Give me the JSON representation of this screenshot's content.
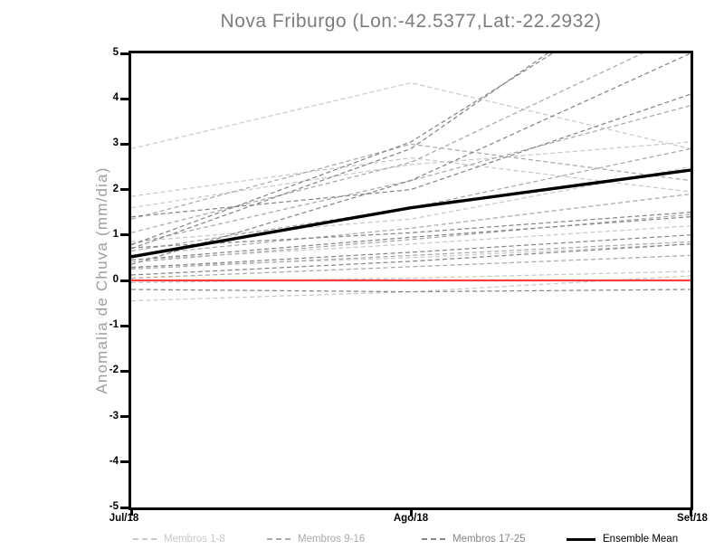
{
  "chart_data": {
    "type": "line",
    "title": "Nova Friburgo (Lon:-42.5377,Lat:-22.2932)",
    "ylabel": "Anomalia de Chuva (mm/dia)",
    "xlabel": "",
    "x_categories": [
      "Jul/18",
      "Ago/18",
      "Set/18"
    ],
    "y_ticks": [
      5,
      4,
      3,
      2,
      1,
      0,
      -1,
      -2,
      -3,
      -4,
      -5
    ],
    "ylim": [
      -5,
      5
    ],
    "grid": false,
    "legend_position": "bottom",
    "zero_line": {
      "value": 0,
      "color": "#f94040"
    },
    "ensemble_mean": {
      "name": "Ensemble Mean",
      "color": "#000000",
      "values": [
        0.52,
        1.6,
        2.43
      ]
    },
    "member_groups": [
      {
        "name": "Membros 1-8",
        "color": "#c9c9c9",
        "members": [
          [
            2.9,
            4.35,
            2.9
          ],
          [
            1.85,
            2.7,
            1.95
          ],
          [
            1.6,
            2.55,
            3.05
          ],
          [
            0.85,
            1.35,
            2.5
          ],
          [
            0.45,
            0.8,
            1.2
          ],
          [
            0.3,
            0.5,
            0.8
          ],
          [
            -0.05,
            0.05,
            0.2
          ],
          [
            -0.45,
            -0.25,
            0.1
          ]
        ]
      },
      {
        "name": "Membros 9-16",
        "color": "#a9a9a9",
        "members": [
          [
            1.35,
            3.0,
            2.2
          ],
          [
            0.8,
            2.2,
            3.85
          ],
          [
            0.65,
            1.6,
            2.9
          ],
          [
            0.55,
            1.15,
            1.9
          ],
          [
            0.4,
            0.9,
            1.45
          ],
          [
            0.25,
            0.55,
            0.85
          ],
          [
            0.05,
            0.3,
            0.55
          ],
          [
            1.05,
            2.6,
            5.5
          ]
        ]
      },
      {
        "name": "Membros 17-25",
        "color": "#868686",
        "members": [
          [
            0.7,
            2.9,
            7.2
          ],
          [
            0.78,
            3.05,
            6.9
          ],
          [
            0.35,
            2.2,
            5.0
          ],
          [
            1.4,
            2.0,
            4.1
          ],
          [
            0.72,
            1.05,
            1.5
          ],
          [
            0.45,
            0.95,
            1.4
          ],
          [
            0.28,
            0.62,
            1.0
          ],
          [
            0.12,
            0.42,
            0.8
          ],
          [
            -0.2,
            -0.25,
            -0.2
          ]
        ]
      }
    ],
    "legend": [
      {
        "label": "Membros 1-8",
        "color": "#c9c9c9",
        "style": "dashed"
      },
      {
        "label": "Membros 9-16",
        "color": "#a9a9a9",
        "style": "dashed"
      },
      {
        "label": "Membros 17-25",
        "color": "#868686",
        "style": "dashed"
      },
      {
        "label": "Ensemble Mean",
        "color": "#000000",
        "style": "solid"
      }
    ]
  }
}
